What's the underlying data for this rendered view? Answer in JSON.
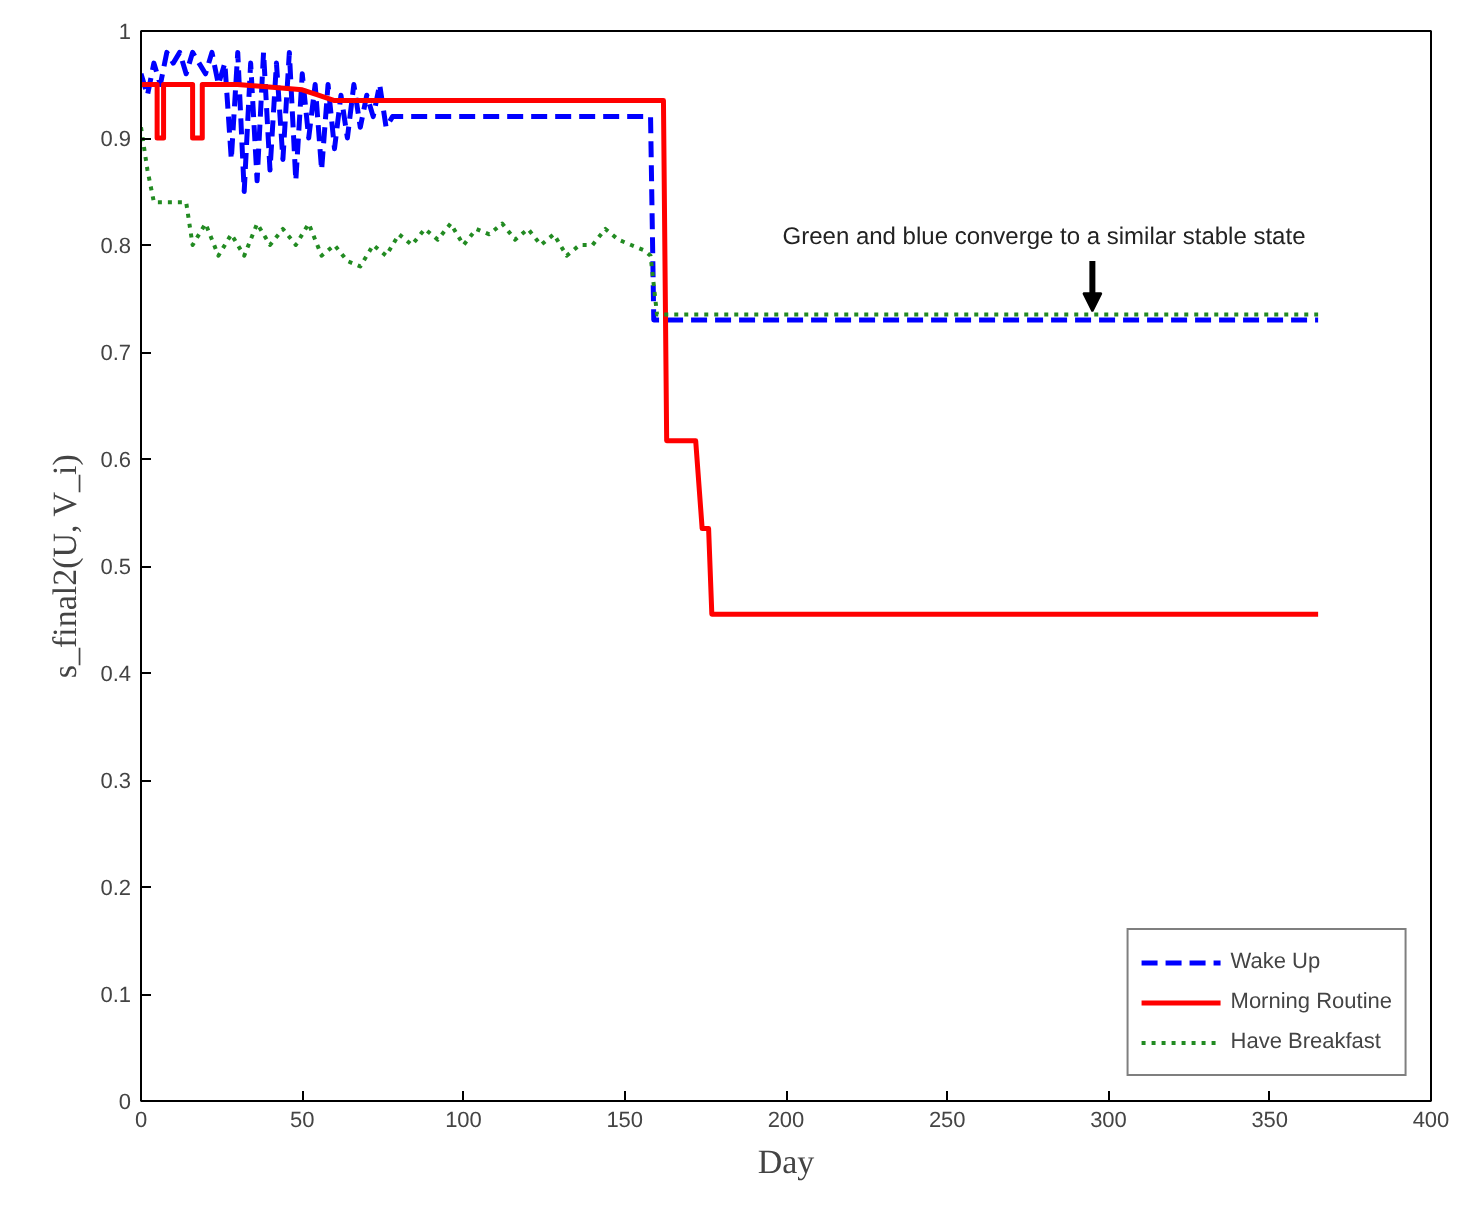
{
  "chart_data": {
    "type": "line",
    "xlabel": "Day",
    "ylabel": "s_final2(U, V_i)",
    "xlim": [
      0,
      400
    ],
    "xticks": [
      0,
      50,
      100,
      150,
      200,
      250,
      300,
      350,
      400
    ],
    "ylim": [
      0,
      1
    ],
    "yticks": [
      0,
      0.1,
      0.2,
      0.3,
      0.4,
      0.5,
      0.6,
      0.7,
      0.8,
      0.9,
      1
    ],
    "grid": false,
    "legend": "bottom right",
    "annotations": [
      {
        "text": "Green and blue converge to a similar stable state",
        "x": 295,
        "y": 0.735
      }
    ],
    "series": [
      {
        "name": "Wake Up",
        "color": "#0000ff",
        "line_style": "dashed",
        "x": [
          0,
          2,
          4,
          6,
          8,
          10,
          12,
          14,
          16,
          18,
          20,
          22,
          24,
          26,
          28,
          30,
          32,
          34,
          36,
          38,
          40,
          42,
          44,
          46,
          48,
          50,
          52,
          54,
          56,
          58,
          60,
          62,
          64,
          66,
          68,
          70,
          72,
          74,
          76,
          78,
          158,
          159,
          365
        ],
        "values": [
          0.96,
          0.94,
          0.97,
          0.95,
          0.98,
          0.97,
          0.98,
          0.96,
          0.98,
          0.97,
          0.96,
          0.98,
          0.95,
          0.97,
          0.88,
          0.98,
          0.85,
          0.97,
          0.86,
          0.98,
          0.87,
          0.97,
          0.88,
          0.98,
          0.86,
          0.96,
          0.9,
          0.95,
          0.87,
          0.95,
          0.89,
          0.94,
          0.9,
          0.95,
          0.91,
          0.94,
          0.92,
          0.95,
          0.91,
          0.92,
          0.92,
          0.73,
          0.73
        ]
      },
      {
        "name": "Morning Routine",
        "color": "#ff0000",
        "line_style": "solid",
        "x": [
          0,
          5,
          5,
          7,
          7,
          16,
          16,
          19,
          19,
          30,
          50,
          55,
          60,
          162,
          163,
          172,
          174,
          176,
          177,
          365
        ],
        "values": [
          0.95,
          0.95,
          0.9,
          0.9,
          0.95,
          0.95,
          0.9,
          0.9,
          0.95,
          0.95,
          0.945,
          0.94,
          0.935,
          0.935,
          0.617,
          0.617,
          0.535,
          0.535,
          0.455,
          0.455
        ]
      },
      {
        "name": "Have Breakfast",
        "color": "#228b22",
        "line_style": "dotted",
        "x": [
          0,
          2,
          4,
          14,
          16,
          20,
          24,
          28,
          32,
          36,
          40,
          44,
          48,
          52,
          56,
          60,
          64,
          68,
          72,
          76,
          80,
          84,
          88,
          92,
          96,
          100,
          104,
          108,
          112,
          116,
          120,
          124,
          128,
          132,
          136,
          140,
          144,
          148,
          152,
          156,
          158,
          160,
          365
        ],
        "values": [
          0.91,
          0.87,
          0.84,
          0.84,
          0.8,
          0.82,
          0.79,
          0.81,
          0.79,
          0.82,
          0.8,
          0.815,
          0.8,
          0.82,
          0.79,
          0.8,
          0.785,
          0.78,
          0.8,
          0.79,
          0.81,
          0.8,
          0.815,
          0.805,
          0.82,
          0.8,
          0.815,
          0.81,
          0.82,
          0.805,
          0.815,
          0.8,
          0.81,
          0.79,
          0.8,
          0.8,
          0.815,
          0.805,
          0.8,
          0.795,
          0.79,
          0.735,
          0.735
        ]
      }
    ]
  }
}
